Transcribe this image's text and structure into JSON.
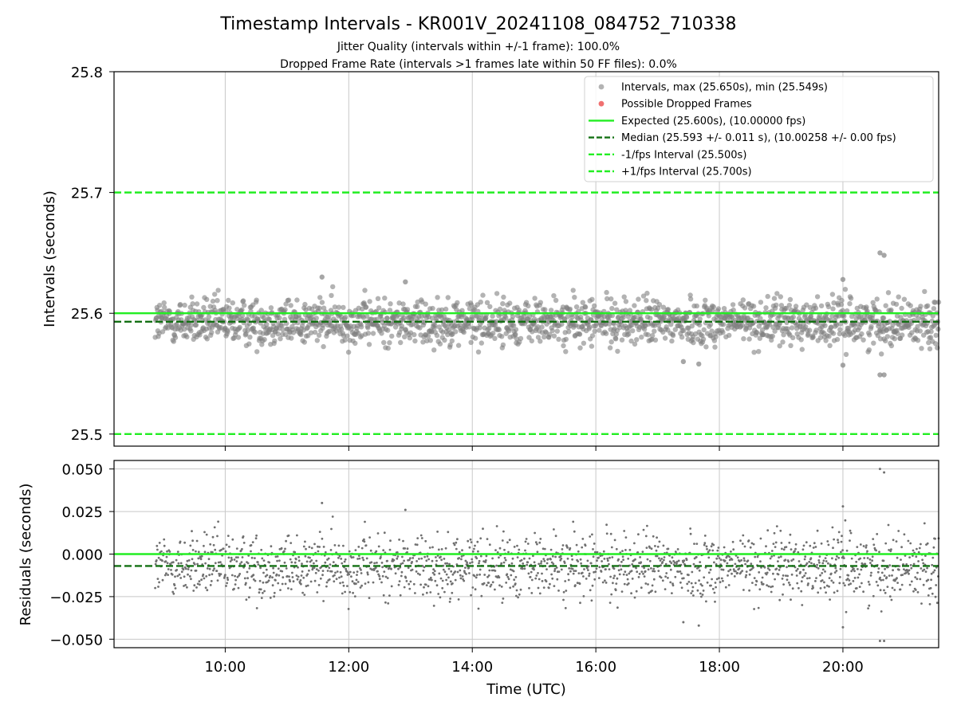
{
  "figure": {
    "title": "Timestamp Intervals - KR001V_20241108_084752_710338",
    "subtitle_1": "Jitter Quality (intervals within +/-1 frame): 100.0%",
    "subtitle_2": "Dropped Frame Rate (intervals >1 frames late within 50 FF files): 0.0%"
  },
  "chart_data": [
    {
      "type": "scatter",
      "panel": "top",
      "ylabel": "Intervals (seconds)",
      "ylim": [
        25.49,
        25.8
      ],
      "yticks": [
        25.5,
        25.6,
        25.7,
        25.8
      ],
      "ytick_labels": [
        "25.5",
        "25.6",
        "25.7",
        "25.8"
      ],
      "xlim": [
        "08:12",
        "21:33"
      ],
      "grid": "x",
      "legend_placement": "top-right",
      "series": [
        {
          "name": "Intervals, max (25.650s), min (25.549s)",
          "kind": "points",
          "color": "#808080",
          "start": "08:52",
          "end": "21:33",
          "count": 1780,
          "center": 25.593,
          "min": 25.549,
          "max": 25.65,
          "outliers": [
            {
              "x": "11:34",
              "y": 25.63
            },
            {
              "x": "12:55",
              "y": 25.626
            },
            {
              "x": "20:00",
              "y": 25.628
            },
            {
              "x": "20:36",
              "y": 25.65
            },
            {
              "x": "20:40",
              "y": 25.648
            },
            {
              "x": "20:36",
              "y": 25.549
            },
            {
              "x": "20:40",
              "y": 25.549
            },
            {
              "x": "17:25",
              "y": 25.56
            },
            {
              "x": "17:40",
              "y": 25.558
            },
            {
              "x": "20:00",
              "y": 25.557
            }
          ]
        },
        {
          "name": "Possible Dropped Frames",
          "kind": "points",
          "color": "#f07070",
          "values": []
        },
        {
          "name": "Expected (25.600s), (10.00000 fps)",
          "kind": "hline",
          "y": 25.6,
          "color": "#22ee22",
          "style": "solid"
        },
        {
          "name": "Median (25.593 +/- 0.011 s), (10.00258 +/- 0.00 fps)",
          "kind": "hline",
          "y": 25.593,
          "color": "#137013",
          "style": "dashed"
        },
        {
          "name": "-1/fps Interval (25.500s)",
          "kind": "hline",
          "y": 25.5,
          "color": "#22ee22",
          "style": "dashed"
        },
        {
          "name": "+1/fps Interval (25.700s)",
          "kind": "hline",
          "y": 25.7,
          "color": "#22ee22",
          "style": "dashed"
        }
      ]
    },
    {
      "type": "scatter",
      "panel": "bottom",
      "xlabel": "Time (UTC)",
      "ylabel": "Residuals (seconds)",
      "ylim": [
        -0.055,
        0.055
      ],
      "yticks": [
        0.05,
        0.025,
        0.0,
        -0.025,
        -0.05
      ],
      "ytick_labels": [
        "0.050",
        "0.025",
        "0.000",
        "−0.025",
        "−0.050"
      ],
      "xlim": [
        "08:12",
        "21:33"
      ],
      "xticks": [
        "10:00",
        "12:00",
        "14:00",
        "16:00",
        "18:00",
        "20:00"
      ],
      "grid": "both",
      "series": [
        {
          "kind": "points",
          "color": "#707070",
          "start": "08:52",
          "end": "21:33",
          "count": 1780,
          "center": -0.007,
          "min": -0.051,
          "max": 0.05,
          "outliers": [
            {
              "x": "11:34",
              "y": 0.03
            },
            {
              "x": "12:55",
              "y": 0.026
            },
            {
              "x": "20:00",
              "y": 0.028
            },
            {
              "x": "20:36",
              "y": 0.05
            },
            {
              "x": "20:40",
              "y": 0.048
            },
            {
              "x": "20:36",
              "y": -0.051
            },
            {
              "x": "20:40",
              "y": -0.051
            },
            {
              "x": "17:25",
              "y": -0.04
            },
            {
              "x": "17:40",
              "y": -0.042
            },
            {
              "x": "20:00",
              "y": -0.043
            }
          ]
        },
        {
          "kind": "hline",
          "y": 0.0,
          "color": "#22ee22",
          "style": "solid"
        },
        {
          "kind": "hline",
          "y": -0.007,
          "color": "#137013",
          "style": "dashed"
        }
      ]
    }
  ]
}
